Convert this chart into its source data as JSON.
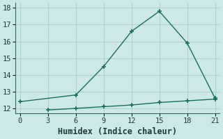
{
  "xlabel": "Humidex (Indice chaleur)",
  "background_color": "#cce8e8",
  "grid_color": "#b0d0d0",
  "line_color": "#1a6e60",
  "line1_x": [
    0,
    6,
    9,
    12,
    15,
    18,
    21
  ],
  "line1_y": [
    12.4,
    12.8,
    14.5,
    16.6,
    17.8,
    15.9,
    12.6
  ],
  "line2_x": [
    3,
    6,
    9,
    12,
    15,
    18,
    21
  ],
  "line2_y": [
    11.9,
    12.0,
    12.1,
    12.2,
    12.35,
    12.45,
    12.55
  ],
  "xlim": [
    -0.5,
    21.5
  ],
  "ylim": [
    11.7,
    18.3
  ],
  "xticks": [
    0,
    3,
    6,
    9,
    12,
    15,
    18,
    21
  ],
  "yticks": [
    12,
    13,
    14,
    15,
    16,
    17,
    18
  ],
  "marker": "+",
  "markersize": 5,
  "markeredgewidth": 1.2,
  "linewidth": 1.0,
  "tick_fontsize": 7.5,
  "xlabel_fontsize": 8.5
}
